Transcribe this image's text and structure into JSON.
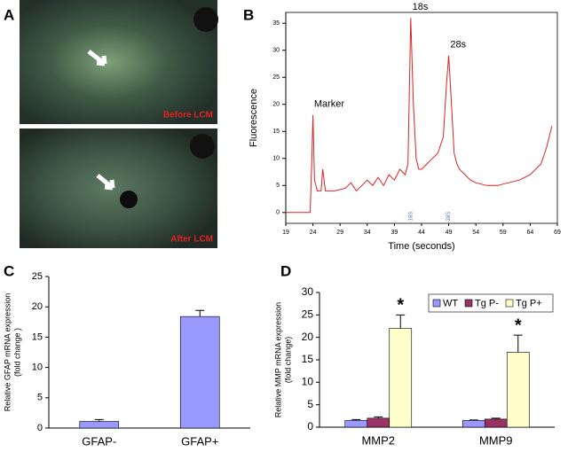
{
  "panel_labels": [
    "A",
    "B",
    "C",
    "D"
  ],
  "images": [
    {
      "label": "Before LCM"
    },
    {
      "label": "After LCM"
    }
  ],
  "chart_data": [
    {
      "type": "line",
      "xlabel": "Time (seconds)",
      "ylabel": "Fluorescence",
      "color": "#dd2222",
      "x": [
        19,
        23.5,
        23.8,
        24,
        24.3,
        24.8,
        25.5,
        25.8,
        26.3,
        28,
        30,
        31,
        32,
        33,
        34,
        35,
        36,
        37,
        38,
        39,
        40,
        41,
        41.5,
        42,
        42.5,
        43,
        43.5,
        44,
        45,
        46,
        47,
        48,
        48.6,
        49,
        49.5,
        50,
        50.5,
        51,
        52,
        53,
        54,
        56,
        58,
        60,
        62,
        64,
        66,
        67,
        68
      ],
      "values": [
        0,
        0,
        10,
        18,
        6,
        4,
        4,
        8,
        4,
        4,
        4.5,
        5.5,
        4,
        5,
        6,
        5,
        6.5,
        5,
        7,
        6,
        8,
        7,
        9,
        36,
        20,
        10,
        8,
        8,
        9,
        10,
        11,
        14,
        24,
        29,
        20,
        11,
        9,
        8,
        7,
        6,
        5.5,
        5,
        5,
        5.5,
        6,
        7,
        9,
        12,
        16
      ],
      "xlim": [
        19,
        69
      ],
      "xticks": [
        19,
        24,
        29,
        34,
        39,
        44,
        49,
        54,
        59,
        64,
        69
      ],
      "ylim": [
        -2,
        37
      ],
      "yticks": [
        0,
        5,
        10,
        15,
        20,
        25,
        30,
        35
      ],
      "annotations": [
        {
          "text": "Marker",
          "x": 24.2,
          "y": 20
        },
        {
          "text": "18s",
          "x": 42.3,
          "y": 38
        },
        {
          "text": "28s",
          "x": 49.3,
          "y": 31
        }
      ],
      "axis_markers": [
        {
          "text": "18S",
          "x": 42
        },
        {
          "text": "28S",
          "x": 49
        }
      ]
    },
    {
      "type": "bar",
      "ylabel": [
        "Relative GFAP mRNA expression",
        "(fold change )"
      ],
      "color": "#9999ff",
      "categories": [
        "GFAP-",
        "GFAP+"
      ],
      "values": [
        1.1,
        18.4
      ],
      "errors": [
        0.3,
        1.0
      ],
      "ylim": [
        0,
        25
      ],
      "yticks": [
        0,
        5,
        10,
        15,
        20,
        25
      ]
    },
    {
      "type": "grouped_bar",
      "ylabel": [
        "Relative MMP mRNA expression",
        "(fold change)"
      ],
      "legend": "top-right",
      "categories": [
        "MMP2",
        "MMP9"
      ],
      "series": [
        {
          "name": "WT",
          "color": "#9999ff",
          "values": [
            1.5,
            1.5
          ],
          "errors": [
            0.2,
            0.1
          ]
        },
        {
          "name": "Tg P-",
          "color": "#993366",
          "values": [
            2.0,
            1.8
          ],
          "errors": [
            0.3,
            0.2
          ]
        },
        {
          "name": "Tg P+",
          "color": "#ffffcc",
          "values": [
            22,
            16.7
          ],
          "errors": [
            3,
            3.8
          ]
        }
      ],
      "ylim": [
        0,
        30
      ],
      "yticks": [
        0,
        5,
        10,
        15,
        20,
        25,
        30
      ],
      "annotations": [
        {
          "text": "*",
          "series": 2,
          "category": 0
        },
        {
          "text": "*",
          "series": 2,
          "category": 1
        }
      ]
    }
  ]
}
